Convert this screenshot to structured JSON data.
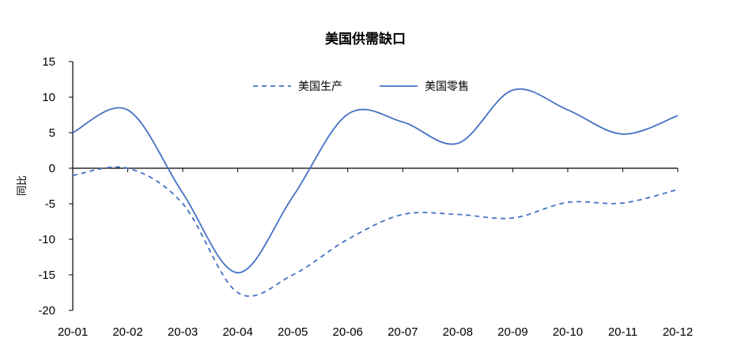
{
  "chart_data": {
    "type": "line",
    "title": "美国供需缺口",
    "ylabel": "同比",
    "xlabel": "",
    "categories": [
      "20-01",
      "20-02",
      "20-03",
      "20-04",
      "20-05",
      "20-06",
      "20-07",
      "20-08",
      "20-09",
      "20-10",
      "20-11",
      "20-12"
    ],
    "ylim": [
      -20,
      15
    ],
    "yticks": [
      15,
      10,
      5,
      0,
      -5,
      -10,
      -15,
      -20
    ],
    "series": [
      {
        "name": "美国生产",
        "style": "dashed",
        "color": "#4472C4",
        "values": [
          -1.0,
          0.0,
          -5.0,
          -17.5,
          -15.0,
          -10.0,
          -6.5,
          -6.5,
          -7.0,
          -4.8,
          -4.9,
          -3.0
        ]
      },
      {
        "name": "美国零售",
        "style": "solid",
        "color": "#4472C4",
        "values": [
          5.0,
          8.2,
          -3.5,
          -14.7,
          -4.0,
          7.6,
          6.5,
          3.5,
          11.0,
          8.2,
          4.8,
          7.4
        ]
      }
    ],
    "legend_position": "top-center",
    "grid": false
  }
}
